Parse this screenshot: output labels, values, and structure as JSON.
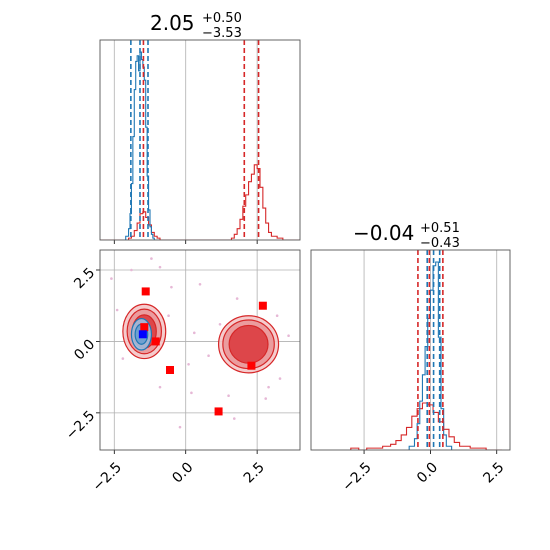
{
  "chart_data": {
    "type": "corner",
    "colors": {
      "red": "#d62728",
      "blue": "#1f77b4",
      "marker_red": "#ff0000",
      "marker_blue": "#0000ff",
      "grid": "#b0b0b0"
    },
    "panels": [
      {
        "id": "hist_x",
        "type": "histogram",
        "title": {
          "value": "2.05",
          "plus": "+0.50",
          "minus": "−3.53"
        },
        "xlim": [
          -3,
          4
        ],
        "xticks": [
          -2.5,
          0.0,
          2.5
        ],
        "series": [
          {
            "name": "",
            "color": "#d62728",
            "edges": [
              -3.0,
              -2.8,
              -2.6,
              -2.4,
              -2.2,
              -2.0,
              -1.9,
              -1.8,
              -1.7,
              -1.6,
              -1.5,
              -1.4,
              -1.3,
              -1.2,
              -1.1,
              -1.0,
              -0.9,
              -0.8,
              -0.6,
              -0.4,
              -0.2,
              0.0,
              0.2,
              0.4,
              0.6,
              0.8,
              1.0,
              1.2,
              1.4,
              1.6,
              1.7,
              1.8,
              1.9,
              2.0,
              2.1,
              2.2,
              2.3,
              2.4,
              2.5,
              2.6,
              2.7,
              2.8,
              2.9,
              3.0,
              3.2,
              3.4,
              3.6,
              3.8,
              4.0
            ],
            "counts": [
              0,
              0,
              0,
              0,
              0,
              1,
              2,
              5,
              9,
              14,
              15,
              12,
              8,
              4,
              2,
              1,
              0,
              0,
              0,
              0,
              0,
              0,
              0,
              0,
              0,
              0,
              0,
              0,
              0,
              1,
              3,
              6,
              11,
              18,
              24,
              31,
              35,
              40,
              38,
              28,
              17,
              9,
              4,
              2,
              1,
              0,
              0,
              0
            ]
          },
          {
            "name": "",
            "color": "#1f77b4",
            "edges": [
              -2.2,
              -2.1,
              -2.0,
              -1.95,
              -1.9,
              -1.85,
              -1.8,
              -1.75,
              -1.7,
              -1.65,
              -1.6,
              -1.55,
              -1.5,
              -1.45,
              -1.4,
              -1.35,
              -1.3,
              -1.25,
              -1.2,
              -1.15,
              -1.1,
              -1.0,
              -0.9
            ],
            "counts": [
              0,
              2,
              6,
              14,
              30,
              55,
              80,
              95,
              98,
              90,
              100,
              96,
              92,
              85,
              60,
              34,
              16,
              7,
              3,
              1,
              0,
              0
            ]
          }
        ],
        "quantile_lines": [
          {
            "color": "#d62728",
            "values": [
              -1.48,
              2.05,
              2.55
            ]
          },
          {
            "color": "#1f77b4",
            "values": [
              -1.92,
              -1.6,
              -1.32
            ]
          }
        ]
      },
      {
        "id": "scatter_xy",
        "type": "2d",
        "xlim": [
          -3,
          4
        ],
        "ylim": [
          -3.8,
          3.2
        ],
        "xticks": [
          -2.5,
          0.0,
          2.5
        ],
        "yticks": [
          -2.5,
          0.0,
          2.5
        ],
        "contours": [
          {
            "color": "#d62728",
            "cx": -1.45,
            "cy": 0.35,
            "levels": [
              {
                "rx": 0.75,
                "ry": 0.95,
                "fill": "#f4c7c8"
              },
              {
                "rx": 0.6,
                "ry": 0.78,
                "fill": "#ea9799"
              },
              {
                "rx": 0.42,
                "ry": 0.58,
                "fill": "#dc3d40"
              }
            ]
          },
          {
            "color": "#d62728",
            "cx": 2.2,
            "cy": -0.1,
            "levels": [
              {
                "rx": 1.05,
                "ry": 1.0,
                "fill": "#f4c7c8"
              },
              {
                "rx": 0.9,
                "ry": 0.85,
                "fill": "#ea9799"
              },
              {
                "rx": 0.68,
                "ry": 0.66,
                "fill": "#dc3d40"
              }
            ]
          },
          {
            "color": "#1f77b4",
            "cx": -1.55,
            "cy": 0.25,
            "levels": [
              {
                "rx": 0.35,
                "ry": 0.55,
                "fill": "#9fbfe0"
              },
              {
                "rx": 0.22,
                "ry": 0.35,
                "fill": "#6a9dcf"
              }
            ]
          }
        ],
        "markers_red": [
          [
            -1.4,
            1.75
          ],
          [
            -1.45,
            0.5
          ],
          [
            -1.05,
            0.0
          ],
          [
            -0.55,
            -1.0
          ],
          [
            2.7,
            1.25
          ],
          [
            2.3,
            -0.85
          ],
          [
            1.15,
            -2.45
          ]
        ],
        "markers_blue": [
          [
            -1.5,
            0.25
          ]
        ],
        "scatter_points": [
          [
            -2.6,
            2.2
          ],
          [
            -2.4,
            1.1
          ],
          [
            -1.9,
            2.5
          ],
          [
            -0.9,
            2.6
          ],
          [
            -0.5,
            1.9
          ],
          [
            0.3,
            0.3
          ],
          [
            0.8,
            -0.5
          ],
          [
            1.2,
            0.6
          ],
          [
            0.2,
            -1.8
          ],
          [
            -0.2,
            -3.0
          ],
          [
            1.8,
            1.5
          ],
          [
            3.3,
            -1.3
          ],
          [
            3.2,
            0.9
          ],
          [
            2.8,
            -2.0
          ],
          [
            -2.2,
            -0.6
          ],
          [
            -0.9,
            -1.6
          ],
          [
            1.5,
            -1.9
          ],
          [
            3.6,
            0.2
          ],
          [
            0.5,
            2.0
          ],
          [
            -1.2,
            2.9
          ],
          [
            2.9,
            -1.6
          ],
          [
            1.7,
            -2.7
          ],
          [
            -0.6,
            0.9
          ],
          [
            0.1,
            -0.8
          ]
        ]
      },
      {
        "id": "hist_y",
        "type": "histogram",
        "title": {
          "value": "−0.04",
          "plus": "+0.51",
          "minus": "−0.43"
        },
        "xlim": [
          -4.5,
          3.0
        ],
        "xticks": [
          -2.5,
          0.0,
          2.5
        ],
        "series": [
          {
            "name": "",
            "color": "#d62728",
            "edges": [
              -3.0,
              -2.7,
              -2.4,
              -2.1,
              -1.8,
              -1.5,
              -1.3,
              -1.1,
              -0.9,
              -0.7,
              -0.5,
              -0.3,
              -0.1,
              0.1,
              0.3,
              0.5,
              0.7,
              0.9,
              1.1,
              1.3,
              1.5,
              1.8,
              2.1,
              2.4,
              2.7
            ],
            "counts": [
              1,
              0,
              1,
              1,
              2,
              3,
              5,
              8,
              12,
              18,
              22,
              25,
              24,
              20,
              15,
              11,
              7,
              4,
              2,
              2,
              1,
              1,
              0,
              0
            ]
          },
          {
            "name": "",
            "color": "#1f77b4",
            "edges": [
              -0.8,
              -0.6,
              -0.5,
              -0.4,
              -0.3,
              -0.2,
              -0.1,
              0.0,
              0.1,
              0.2,
              0.3,
              0.4,
              0.5,
              0.6,
              0.8
            ],
            "counts": [
              2,
              6,
              14,
              26,
              40,
              55,
              70,
              85,
              98,
              100,
              60,
              22,
              8,
              2
            ]
          }
        ],
        "quantile_lines": [
          {
            "color": "#d62728",
            "values": [
              -0.47,
              -0.04,
              0.47
            ]
          },
          {
            "color": "#1f77b4",
            "values": [
              -0.12,
              0.12,
              0.35
            ]
          }
        ]
      }
    ]
  }
}
